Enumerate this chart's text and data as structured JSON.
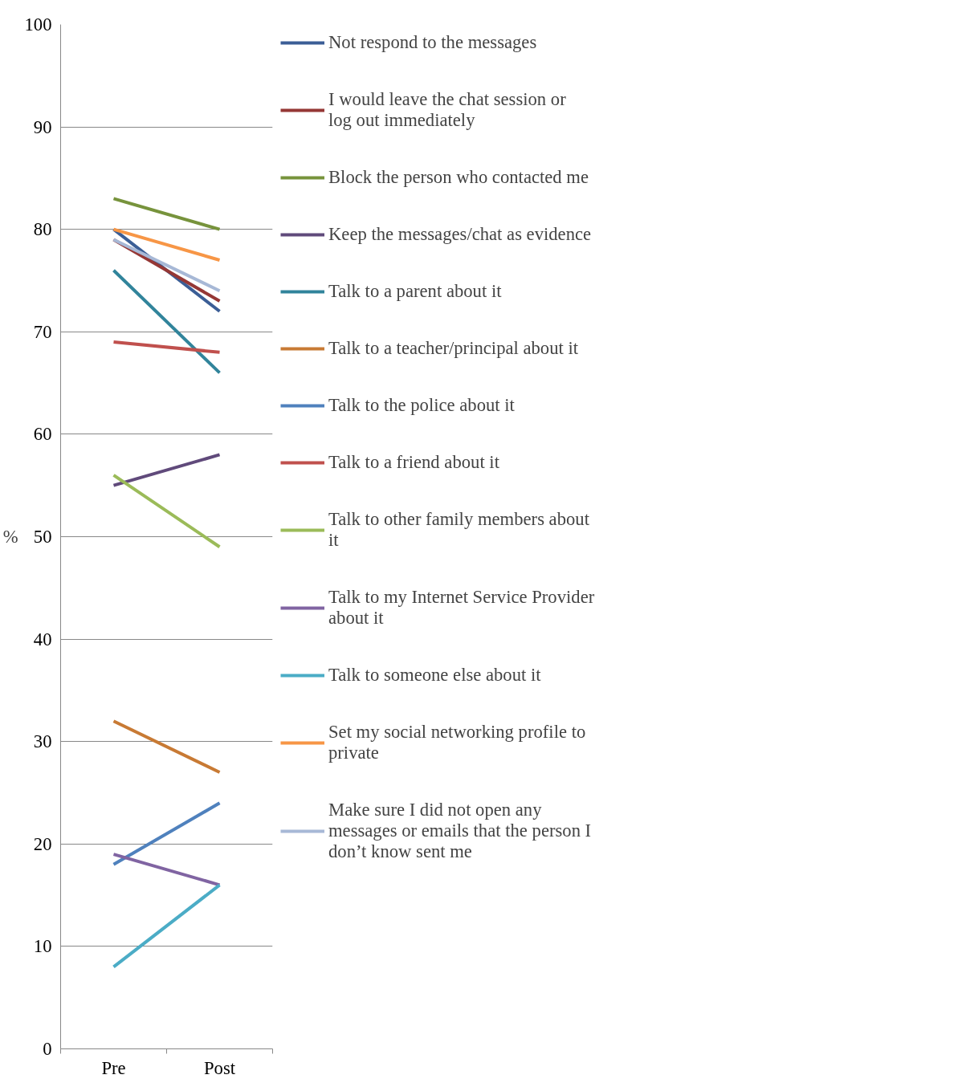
{
  "chart_data": {
    "type": "line",
    "categories": [
      "Pre",
      "Post"
    ],
    "ylabel": "%",
    "ylim": [
      0,
      100
    ],
    "yticks": [
      0,
      10,
      20,
      30,
      40,
      50,
      60,
      70,
      80,
      90,
      100
    ],
    "grid": "y",
    "legend": "right",
    "marker": "none",
    "line_style": "solid",
    "series": [
      {
        "name": "Not respond to the messages",
        "color": "#3b5e96",
        "values": [
          80,
          72
        ]
      },
      {
        "name": "I would leave the chat session or log out immediately",
        "color": "#953735",
        "values": [
          79,
          73
        ]
      },
      {
        "name": "Block the person who contacted me",
        "color": "#77933c",
        "values": [
          83,
          80
        ]
      },
      {
        "name": "Keep the messages/chat as evidence",
        "color": "#604a7b",
        "values": [
          55,
          58
        ]
      },
      {
        "name": "Talk to a parent about it",
        "color": "#31849b",
        "values": [
          76,
          66
        ]
      },
      {
        "name": "Talk to a teacher/principal about it",
        "color": "#c87a34",
        "values": [
          32,
          27
        ]
      },
      {
        "name": "Talk to the police about it",
        "color": "#4f81bd",
        "values": [
          18,
          24
        ]
      },
      {
        "name": "Talk to a friend about it",
        "color": "#c0504d",
        "values": [
          69,
          68
        ]
      },
      {
        "name": "Talk to other family members about it",
        "color": "#9bbb59",
        "values": [
          56,
          49
        ]
      },
      {
        "name": "Talk to my Internet Service Provider about it",
        "color": "#8064a2",
        "values": [
          19,
          16
        ]
      },
      {
        "name": "Talk to someone else about it",
        "color": "#4bacc6",
        "values": [
          8,
          16
        ]
      },
      {
        "name": "Set my social networking profile to private",
        "color": "#f79646",
        "values": [
          80,
          77
        ]
      },
      {
        "name": "Make sure I did not open any messages or emails that the person I don’t know sent me",
        "color": "#a7b8d6",
        "values": [
          79,
          74
        ]
      }
    ]
  }
}
